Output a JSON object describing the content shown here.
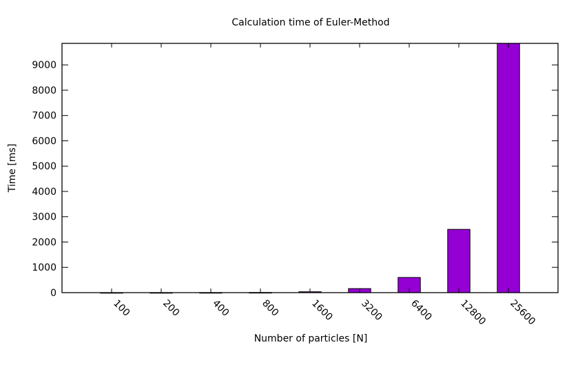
{
  "chart_data": {
    "type": "bar",
    "title": "Calculation time of Euler-Method",
    "xlabel": "Number of particles [N]",
    "ylabel": "Time [ms]",
    "categories": [
      "100",
      "200",
      "400",
      "800",
      "1600",
      "3200",
      "6400",
      "12800",
      "25600"
    ],
    "values": [
      0.5,
      1,
      2,
      5,
      35,
      160,
      600,
      2500,
      9850
    ],
    "ylim": [
      0,
      9850
    ],
    "yticks": [
      0,
      1000,
      2000,
      3000,
      4000,
      5000,
      6000,
      7000,
      8000,
      9000
    ],
    "bar_color": "#9400d3",
    "grid": false,
    "legend": "none"
  }
}
